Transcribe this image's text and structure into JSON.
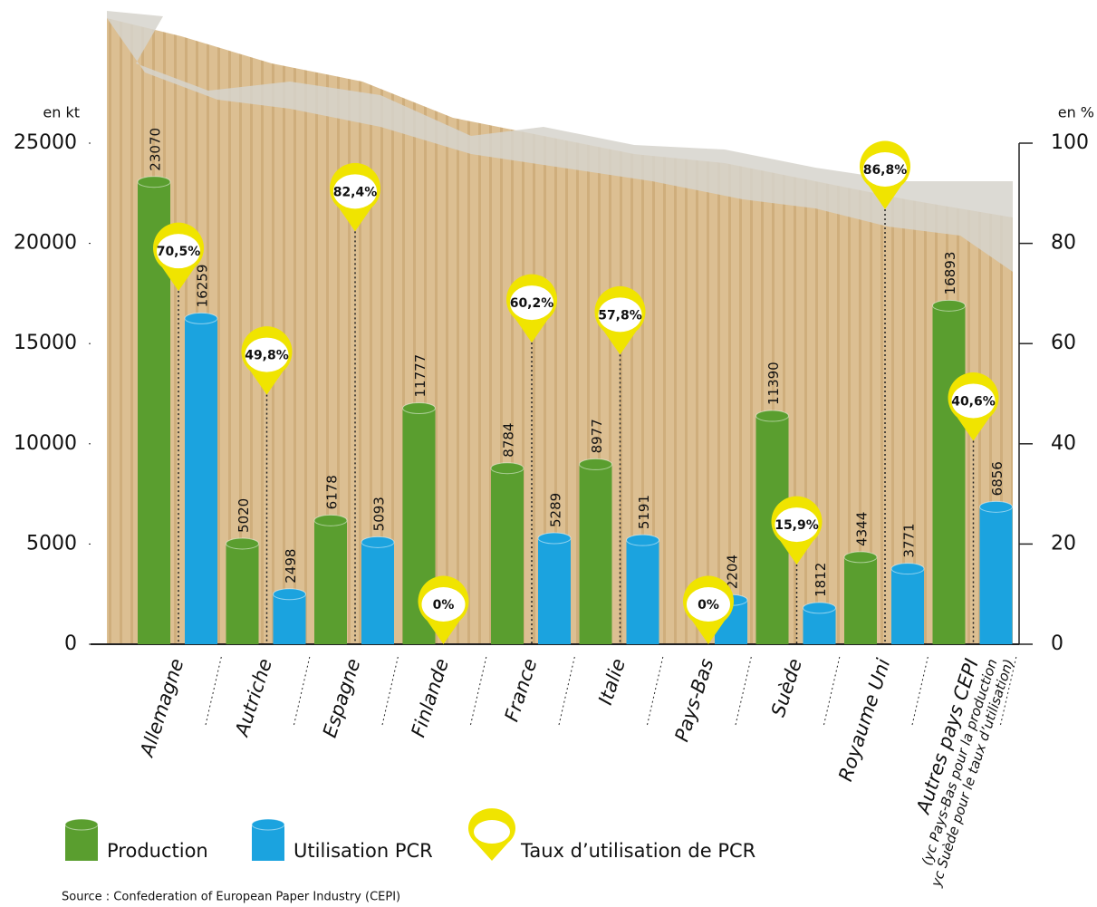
{
  "chart_data": {
    "type": "bar",
    "ylabel": "en kt",
    "y2label": "en %",
    "categories": [
      "Allemagne",
      "Autriche",
      "Espagne",
      "Finlande",
      "France",
      "Italie",
      "Pays-Bas",
      "Suède",
      "Royaume Uni",
      "Autres pays CEPI"
    ],
    "last_category_subtext": [
      "(yc Pays-Bas pour la production",
      "yc Suède pour le taux d’utilisation)"
    ],
    "series": [
      {
        "name": "Production",
        "color": "#5a9e2f",
        "values": [
          23070,
          5020,
          6178,
          11777,
          8784,
          8977,
          null,
          11390,
          4344,
          16893
        ]
      },
      {
        "name": "Utilisation PCR",
        "color": "#1ba3df",
        "values": [
          16259,
          2498,
          5093,
          null,
          5289,
          5191,
          2204,
          1812,
          3771,
          6856
        ]
      },
      {
        "name": "Taux d’utilisation de PCR",
        "color": "#f0e400",
        "axis": "y2",
        "values": [
          70.5,
          49.8,
          82.4,
          0,
          60.2,
          57.8,
          0,
          15.9,
          86.8,
          40.6
        ],
        "value_labels": [
          "70,5%",
          "49,8%",
          "82,4%",
          "0%",
          "60,2%",
          "57,8%",
          "0%",
          "15,9%",
          "86,8%",
          "40,6%"
        ]
      }
    ],
    "ylim": [
      0,
      25000
    ],
    "yticks": [
      0,
      5000,
      10000,
      15000,
      20000,
      25000
    ],
    "y2lim": [
      0,
      100
    ],
    "y2ticks": [
      0,
      20,
      40,
      60,
      80,
      100
    ],
    "source": "Source : Confederation of European Paper Industry (CEPI)"
  }
}
